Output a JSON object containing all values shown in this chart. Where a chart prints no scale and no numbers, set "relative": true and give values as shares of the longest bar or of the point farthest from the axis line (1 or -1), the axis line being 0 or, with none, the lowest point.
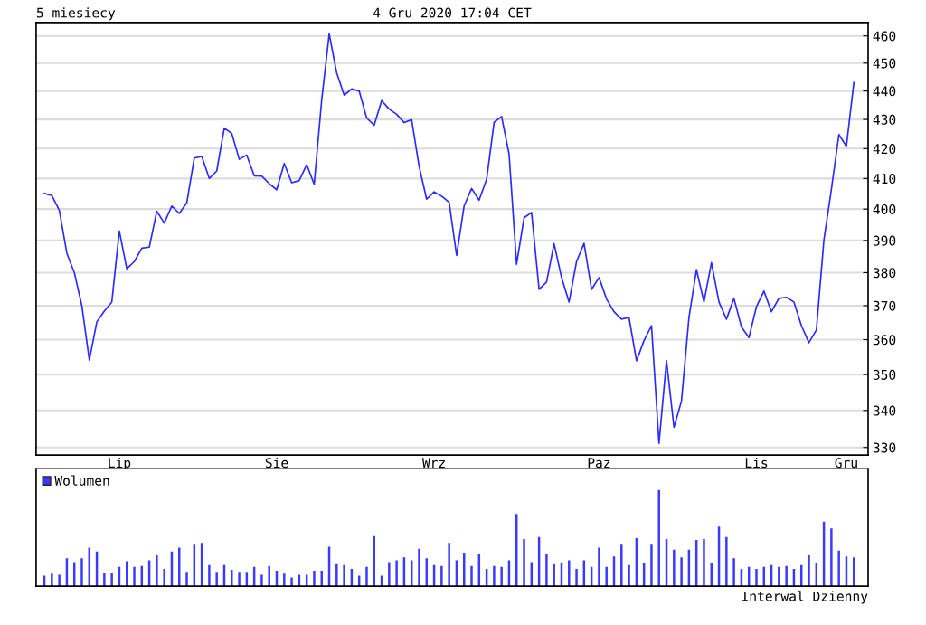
{
  "chart_data": [
    {
      "type": "line",
      "title": "5 miesiecy",
      "subtitle": "4 Gru 2020 17:04 CET",
      "log": true,
      "grid": "y",
      "legend": false,
      "marker": "none",
      "line_style": "solid",
      "ylim": [
        328,
        465
      ],
      "categories": [
        null,
        null,
        null,
        null,
        null,
        null,
        null,
        null,
        null,
        null,
        "Lip",
        null,
        null,
        null,
        null,
        null,
        null,
        null,
        null,
        null,
        null,
        null,
        null,
        null,
        null,
        null,
        null,
        null,
        null,
        null,
        null,
        "Sie",
        null,
        null,
        null,
        null,
        null,
        null,
        null,
        null,
        null,
        null,
        null,
        null,
        null,
        null,
        null,
        null,
        null,
        null,
        null,
        null,
        "Wrz",
        null,
        null,
        null,
        null,
        null,
        null,
        null,
        null,
        null,
        null,
        null,
        null,
        null,
        null,
        null,
        null,
        null,
        null,
        null,
        null,
        null,
        "Paz",
        null,
        null,
        null,
        null,
        null,
        null,
        null,
        null,
        null,
        null,
        null,
        null,
        null,
        null,
        null,
        null,
        null,
        null,
        null,
        null,
        "Lis",
        null,
        null,
        null,
        null,
        null,
        null,
        null,
        null,
        null,
        null,
        null,
        "Gru",
        null
      ],
      "yticks": [
        330,
        340,
        350,
        360,
        370,
        380,
        390,
        400,
        410,
        420,
        430,
        440,
        450,
        460
      ],
      "series": [
        {
          "color": "#2b2bff",
          "values": [
            405.1,
            404.4,
            399.6,
            386,
            380,
            370,
            354.1,
            365.2,
            368.4,
            371.1,
            393,
            381.2,
            383.4,
            387.6,
            387.9,
            399.3,
            395.5,
            401,
            398.6,
            402,
            416.8,
            417.4,
            410,
            412.5,
            427,
            425.2,
            416.4,
            417.8,
            410.9,
            410.8,
            408.3,
            406.3,
            415,
            408.6,
            409.3,
            414.6,
            408.1,
            436.8,
            460.8,
            446.5,
            438.5,
            440.7,
            440,
            430.5,
            428,
            436.6,
            433.6,
            431.8,
            428.9,
            429.9,
            414,
            403.2,
            405.6,
            404.2,
            402.2,
            385.3,
            401,
            406.7,
            402.9,
            409.7,
            429,
            431,
            418.1,
            382.6,
            397.2,
            398.9,
            374.9,
            377.1,
            389,
            378.5,
            371.1,
            383.4,
            389.1,
            374.9,
            378.5,
            372,
            368.2,
            366,
            366.5,
            353.9,
            359.7,
            364.1,
            331.1,
            353.9,
            335.4,
            342.6,
            366.5,
            380.9,
            371.1,
            383.1,
            371.1,
            366,
            372.2,
            363.7,
            360.6,
            369.7,
            374.4,
            368.2,
            372.2,
            372.5,
            371.1,
            364.1,
            359.1,
            362.8,
            390.1,
            406.4,
            424.8,
            420.8,
            443
          ]
        }
      ]
    },
    {
      "type": "bar",
      "relative": true,
      "legend": "top left",
      "annotations": [
        "Interwal Dzienny"
      ],
      "categories": [
        null,
        null,
        null,
        null,
        null,
        null,
        null,
        null,
        null,
        null,
        null,
        null,
        null,
        null,
        null,
        null,
        null,
        null,
        null,
        null,
        null,
        null,
        null,
        null,
        null,
        null,
        null,
        null,
        null,
        null,
        null,
        null,
        null,
        null,
        null,
        null,
        null,
        null,
        null,
        null,
        null,
        null,
        null,
        null,
        null,
        null,
        null,
        null,
        null,
        null,
        null,
        null,
        null,
        null,
        null,
        null,
        null,
        null,
        null,
        null,
        null,
        null,
        null,
        null,
        null,
        null,
        null,
        null,
        null,
        null,
        null,
        null,
        null,
        null,
        null,
        null,
        null,
        null,
        null,
        null,
        null,
        null,
        null,
        null,
        null,
        null,
        null,
        null,
        null,
        null,
        null,
        null,
        null,
        null,
        null,
        null,
        null,
        null,
        null,
        null,
        null,
        null,
        null,
        null,
        null,
        null,
        null,
        null,
        null
      ],
      "series": [
        {
          "name": "Wolumen",
          "color": "#3a3aff",
          "values": [
            0.11,
            0.13,
            0.12,
            0.29,
            0.25,
            0.29,
            0.4,
            0.36,
            0.14,
            0.14,
            0.2,
            0.26,
            0.2,
            0.21,
            0.27,
            0.32,
            0.18,
            0.36,
            0.4,
            0.15,
            0.44,
            0.45,
            0.22,
            0.15,
            0.22,
            0.17,
            0.15,
            0.15,
            0.2,
            0.12,
            0.21,
            0.16,
            0.13,
            0.09,
            0.12,
            0.12,
            0.16,
            0.16,
            0.41,
            0.23,
            0.22,
            0.18,
            0.11,
            0.2,
            0.52,
            0.11,
            0.25,
            0.27,
            0.3,
            0.27,
            0.39,
            0.29,
            0.22,
            0.21,
            0.45,
            0.27,
            0.35,
            0.21,
            0.34,
            0.18,
            0.21,
            0.2,
            0.27,
            0.75,
            0.49,
            0.25,
            0.51,
            0.34,
            0.23,
            0.24,
            0.27,
            0.18,
            0.27,
            0.2,
            0.4,
            0.2,
            0.31,
            0.44,
            0.22,
            0.5,
            0.24,
            0.44,
            1,
            0.49,
            0.38,
            0.3,
            0.38,
            0.48,
            0.49,
            0.24,
            0.62,
            0.51,
            0.29,
            0.18,
            0.2,
            0.18,
            0.2,
            0.22,
            0.2,
            0.21,
            0.18,
            0.22,
            0.32,
            0.24,
            0.67,
            0.6,
            0.37,
            0.31,
            0.3
          ]
        }
      ]
    }
  ]
}
